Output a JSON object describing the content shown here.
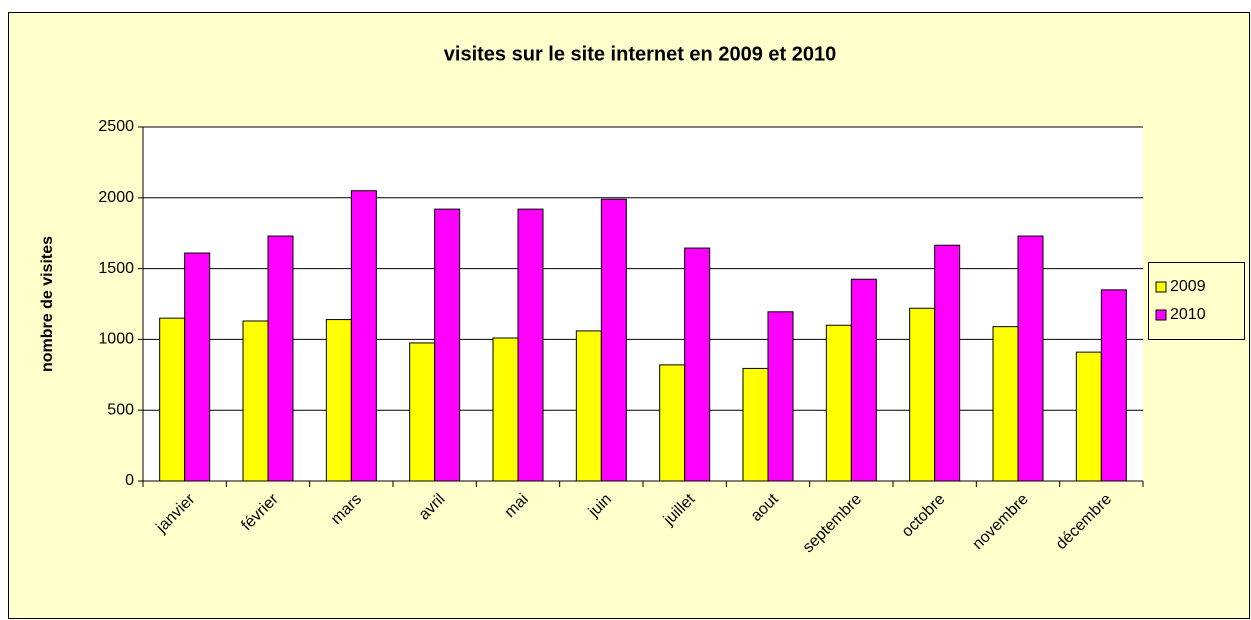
{
  "chart_data": {
    "type": "bar",
    "title": "visites sur le site internet en 2009 et 2010",
    "y_label": "nombre de visites",
    "categories": [
      "janvier",
      "février",
      "mars",
      "avril",
      "mai",
      "juin",
      "juillet",
      "aout",
      "septembre",
      "octobre",
      "novembre",
      "décembre"
    ],
    "series": [
      {
        "name": "2009",
        "color": "#ffff00",
        "values": [
          1150,
          1130,
          1140,
          975,
          1010,
          1060,
          820,
          795,
          1100,
          1220,
          1090,
          910
        ]
      },
      {
        "name": "2010",
        "color": "#ff00ff",
        "values": [
          1610,
          1730,
          2050,
          1920,
          1920,
          1990,
          1645,
          1195,
          1425,
          1665,
          1730,
          1350
        ]
      }
    ],
    "ylim": [
      0,
      2500
    ],
    "yticks": [
      0,
      500,
      1000,
      1500,
      2000,
      2500
    ],
    "grid": true,
    "legend": "right"
  }
}
